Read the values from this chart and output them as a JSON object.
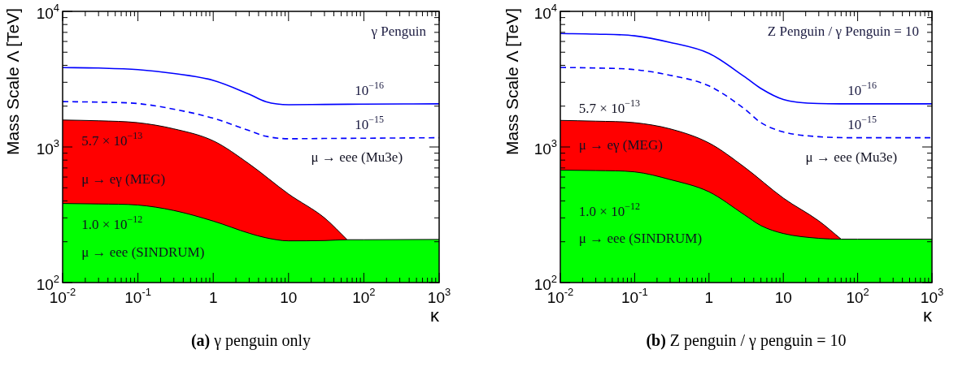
{
  "chart_data": [
    {
      "type": "area",
      "title": "(a) γ penguin only",
      "subtitle": "γ Penguin",
      "xlabel": "κ",
      "ylabel": "Mass Scale Λ [TeV]",
      "log": "xy",
      "xlim": [
        0.01,
        1000
      ],
      "ylim": [
        100,
        10000
      ],
      "xticks": [
        {
          "value": 0.01,
          "label": "10$^{-2}$"
        },
        {
          "value": 0.02,
          "label": null
        },
        {
          "value": 0.03,
          "label": null
        },
        {
          "value": 0.04,
          "label": null
        },
        {
          "value": 0.05,
          "label": null
        },
        {
          "value": 0.06,
          "label": null
        },
        {
          "value": 0.07,
          "label": null
        },
        {
          "value": 0.08,
          "label": null
        },
        {
          "value": 0.09,
          "label": null
        },
        {
          "value": 0.1,
          "label": "10$^{-1}$"
        },
        {
          "value": 0.2,
          "label": null
        },
        {
          "value": 0.3,
          "label": null
        },
        {
          "value": 0.4,
          "label": null
        },
        {
          "value": 0.5,
          "label": null
        },
        {
          "value": 0.6,
          "label": null
        },
        {
          "value": 0.7,
          "label": null
        },
        {
          "value": 0.8,
          "label": null
        },
        {
          "value": 0.9,
          "label": null
        },
        {
          "value": 1,
          "label": "1"
        },
        {
          "value": 2,
          "label": null
        },
        {
          "value": 3,
          "label": null
        },
        {
          "value": 4,
          "label": null
        },
        {
          "value": 5,
          "label": null
        },
        {
          "value": 6,
          "label": null
        },
        {
          "value": 7,
          "label": null
        },
        {
          "value": 8,
          "label": null
        },
        {
          "value": 9,
          "label": null
        },
        {
          "value": 10,
          "label": "10"
        },
        {
          "value": 20,
          "label": null
        },
        {
          "value": 30,
          "label": null
        },
        {
          "value": 40,
          "label": null
        },
        {
          "value": 50,
          "label": null
        },
        {
          "value": 60,
          "label": null
        },
        {
          "value": 70,
          "label": null
        },
        {
          "value": 80,
          "label": null
        },
        {
          "value": 90,
          "label": null
        },
        {
          "value": 100,
          "label": "10$^{2}$"
        },
        {
          "value": 200,
          "label": null
        },
        {
          "value": 300,
          "label": null
        },
        {
          "value": 400,
          "label": null
        },
        {
          "value": 500,
          "label": null
        },
        {
          "value": 600,
          "label": null
        },
        {
          "value": 700,
          "label": null
        },
        {
          "value": 800,
          "label": null
        },
        {
          "value": 900,
          "label": null
        },
        {
          "value": 1000,
          "label": "10$^{3}$"
        }
      ],
      "yticks": [
        {
          "value": 100,
          "label": "10$^{2}$"
        },
        {
          "value": 200,
          "label": null
        },
        {
          "value": 300,
          "label": null
        },
        {
          "value": 400,
          "label": null
        },
        {
          "value": 500,
          "label": null
        },
        {
          "value": 600,
          "label": null
        },
        {
          "value": 700,
          "label": null
        },
        {
          "value": 800,
          "label": null
        },
        {
          "value": 900,
          "label": null
        },
        {
          "value": 1000,
          "label": "10$^{3}$"
        },
        {
          "value": 2000,
          "label": null
        },
        {
          "value": 3000,
          "label": null
        },
        {
          "value": 4000,
          "label": null
        },
        {
          "value": 5000,
          "label": null
        },
        {
          "value": 6000,
          "label": null
        },
        {
          "value": 7000,
          "label": null
        },
        {
          "value": 8000,
          "label": null
        },
        {
          "value": 9000,
          "label": null
        },
        {
          "value": 10000,
          "label": "10$^{4}$"
        }
      ],
      "series": [
        {
          "type": "line",
          "name": "10$^{−16}$",
          "color": "#0000ff",
          "line_style": "solid",
          "x": [
            0.01,
            0.03,
            0.1,
            0.3,
            1,
            3,
            5,
            10,
            30,
            100,
            1000
          ],
          "values": [
            3850,
            3820,
            3720,
            3480,
            3100,
            2450,
            2160,
            2050,
            2060,
            2070,
            2080
          ]
        },
        {
          "type": "line",
          "name": "10$^{−15}$",
          "color": "#0000ff",
          "line_style": "dashed",
          "x": [
            0.01,
            0.03,
            0.1,
            0.3,
            1,
            3,
            5,
            10,
            30,
            100,
            1000
          ],
          "values": [
            2160,
            2140,
            2090,
            1900,
            1630,
            1320,
            1200,
            1150,
            1155,
            1160,
            1170
          ]
        },
        {
          "type": "area",
          "color": "#ff0000",
          "x": [
            0.01,
            0.03,
            0.1,
            0.3,
            1,
            3,
            10,
            30,
            60
          ],
          "values": [
            1580,
            1560,
            1510,
            1360,
            1110,
            750,
            450,
            300,
            207
          ]
        },
        {
          "type": "area",
          "color": "#00ff00",
          "x": [
            0.01,
            0.03,
            0.1,
            0.3,
            1,
            3,
            5,
            10,
            30,
            60,
            100,
            1000
          ],
          "values": [
            383,
            380,
            373,
            340,
            284,
            231,
            214,
            203,
            204,
            207,
            207,
            208
          ]
        }
      ],
      "annotations": [
        "μ → eee (Mu3e)",
        "5.7 × 10$^{−13}$",
        "μ → eγ (MEG)",
        "1.0 × 10$^{−12}$",
        "μ → eee (SINDRUM)"
      ]
    },
    {
      "type": "area",
      "title": "(b) Z penguin / γ penguin = 10",
      "subtitle": "Z Penguin / γ Penguin = 10",
      "xlabel": "κ",
      "ylabel": "Mass Scale Λ [TeV]",
      "log": "xy",
      "xlim": [
        0.01,
        1000
      ],
      "ylim": [
        100,
        10000
      ],
      "xticks": [
        {
          "value": 0.01,
          "label": "10$^{-2}$"
        },
        {
          "value": 0.02,
          "label": null
        },
        {
          "value": 0.03,
          "label": null
        },
        {
          "value": 0.04,
          "label": null
        },
        {
          "value": 0.05,
          "label": null
        },
        {
          "value": 0.06,
          "label": null
        },
        {
          "value": 0.07,
          "label": null
        },
        {
          "value": 0.08,
          "label": null
        },
        {
          "value": 0.09,
          "label": null
        },
        {
          "value": 0.1,
          "label": "10$^{-1}$"
        },
        {
          "value": 0.2,
          "label": null
        },
        {
          "value": 0.3,
          "label": null
        },
        {
          "value": 0.4,
          "label": null
        },
        {
          "value": 0.5,
          "label": null
        },
        {
          "value": 0.6,
          "label": null
        },
        {
          "value": 0.7,
          "label": null
        },
        {
          "value": 0.8,
          "label": null
        },
        {
          "value": 0.9,
          "label": null
        },
        {
          "value": 1,
          "label": "1"
        },
        {
          "value": 2,
          "label": null
        },
        {
          "value": 3,
          "label": null
        },
        {
          "value": 4,
          "label": null
        },
        {
          "value": 5,
          "label": null
        },
        {
          "value": 6,
          "label": null
        },
        {
          "value": 7,
          "label": null
        },
        {
          "value": 8,
          "label": null
        },
        {
          "value": 9,
          "label": null
        },
        {
          "value": 10,
          "label": "10"
        },
        {
          "value": 20,
          "label": null
        },
        {
          "value": 30,
          "label": null
        },
        {
          "value": 40,
          "label": null
        },
        {
          "value": 50,
          "label": null
        },
        {
          "value": 60,
          "label": null
        },
        {
          "value": 70,
          "label": null
        },
        {
          "value": 80,
          "label": null
        },
        {
          "value": 90,
          "label": null
        },
        {
          "value": 100,
          "label": "10$^{2}$"
        },
        {
          "value": 200,
          "label": null
        },
        {
          "value": 300,
          "label": null
        },
        {
          "value": 400,
          "label": null
        },
        {
          "value": 500,
          "label": null
        },
        {
          "value": 600,
          "label": null
        },
        {
          "value": 700,
          "label": null
        },
        {
          "value": 800,
          "label": null
        },
        {
          "value": 900,
          "label": null
        },
        {
          "value": 1000,
          "label": "10$^{3}$"
        }
      ],
      "yticks": [
        {
          "value": 100,
          "label": "10$^{2}$"
        },
        {
          "value": 200,
          "label": null
        },
        {
          "value": 300,
          "label": null
        },
        {
          "value": 400,
          "label": null
        },
        {
          "value": 500,
          "label": null
        },
        {
          "value": 600,
          "label": null
        },
        {
          "value": 700,
          "label": null
        },
        {
          "value": 800,
          "label": null
        },
        {
          "value": 900,
          "label": null
        },
        {
          "value": 1000,
          "label": "10$^{3}$"
        },
        {
          "value": 2000,
          "label": null
        },
        {
          "value": 3000,
          "label": null
        },
        {
          "value": 4000,
          "label": null
        },
        {
          "value": 5000,
          "label": null
        },
        {
          "value": 6000,
          "label": null
        },
        {
          "value": 7000,
          "label": null
        },
        {
          "value": 8000,
          "label": null
        },
        {
          "value": 9000,
          "label": null
        },
        {
          "value": 10000,
          "label": "10$^{4}$"
        }
      ],
      "series": [
        {
          "type": "line",
          "name": "10$^{−16}$",
          "color": "#0000ff",
          "line_style": "solid",
          "x": [
            0.01,
            0.03,
            0.1,
            0.3,
            1,
            3,
            5,
            10,
            30,
            100,
            1000
          ],
          "values": [
            6870,
            6800,
            6600,
            5900,
            4900,
            3300,
            2700,
            2240,
            2090,
            2080,
            2080
          ]
        },
        {
          "type": "line",
          "name": "10$^{−15}$",
          "color": "#0000ff",
          "line_style": "dashed",
          "x": [
            0.01,
            0.03,
            0.1,
            0.3,
            1,
            3,
            5,
            10,
            30,
            100,
            1000
          ],
          "values": [
            3860,
            3820,
            3720,
            3380,
            2820,
            1910,
            1510,
            1290,
            1190,
            1170,
            1170
          ]
        },
        {
          "type": "area",
          "color": "#ff0000",
          "x": [
            0.01,
            0.03,
            0.1,
            0.3,
            1,
            3,
            10,
            30,
            60
          ],
          "values": [
            1570,
            1550,
            1510,
            1360,
            1070,
            710,
            420,
            285,
            209
          ]
        },
        {
          "type": "area",
          "color": "#00ff00",
          "x": [
            0.01,
            0.03,
            0.1,
            0.3,
            1,
            3,
            5,
            10,
            30,
            60,
            100,
            1000
          ],
          "values": [
            675,
            670,
            655,
            575,
            467,
            316,
            263,
            230,
            212,
            209,
            209,
            209
          ]
        }
      ],
      "annotations": [
        "μ → eee (Mu3e)",
        "5.7 × 10$^{−13}$",
        "μ → eγ (MEG)",
        "1.0 × 10$^{−12}$",
        "μ → eee (SINDRUM)"
      ]
    }
  ]
}
